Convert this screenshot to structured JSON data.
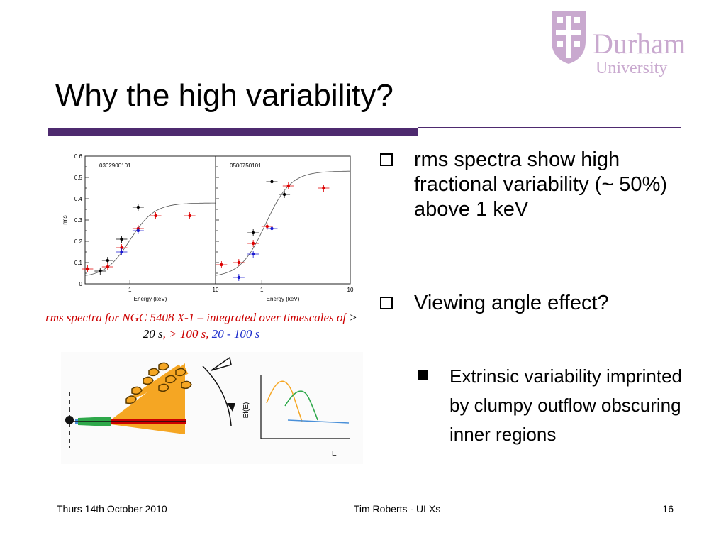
{
  "slide": {
    "title": "Why the high variability?",
    "logo": {
      "word1": "Durham",
      "word2": "University"
    },
    "caption": {
      "part1": "rms spectra for NGC 5408 X-1 – integrated over timescales of ",
      "part2": "> 20 s",
      "part3": ", > 100 s, ",
      "part4": "20 - 100 s"
    },
    "bullets": [
      {
        "text": "rms spectra show high fractional variability (~ 50%) above 1 keV"
      },
      {
        "text": "Viewing angle effect?"
      }
    ],
    "sub_bullets": [
      {
        "text": "Extrinsic variability imprinted by clumpy outflow obscuring inner regions"
      }
    ],
    "footer": {
      "date": "Thurs 14th October 2010",
      "center": "Tim Roberts - ULXs",
      "page": "16"
    }
  },
  "chart_data": [
    {
      "type": "scatter",
      "title": "0302900101",
      "xlabel": "Energy (keV)",
      "ylabel": "rms",
      "x_scale": "log",
      "xlim": [
        0.3,
        10
      ],
      "ylim": [
        0,
        0.6
      ],
      "xticks": [
        "1",
        "10"
      ],
      "yticks": [
        "0",
        "0.1",
        "0.2",
        "0.3",
        "0.4",
        "0.5",
        "0.6"
      ],
      "series": [
        {
          "color": "#000000",
          "points": [
            [
              0.45,
              0.06
            ],
            [
              0.55,
              0.11
            ],
            [
              0.8,
              0.21
            ],
            [
              1.25,
              0.36
            ]
          ]
        },
        {
          "color": "#dd0000",
          "points": [
            [
              0.32,
              0.07
            ],
            [
              0.55,
              0.08
            ],
            [
              0.8,
              0.17
            ],
            [
              1.25,
              0.26
            ],
            [
              2.0,
              0.32
            ],
            [
              5.0,
              0.32
            ]
          ]
        },
        {
          "color": "#1a1ad0",
          "points": [
            [
              0.8,
              0.15
            ],
            [
              1.25,
              0.25
            ]
          ]
        }
      ]
    },
    {
      "type": "scatter",
      "title": "0500750101",
      "xlabel": "Energy (keV)",
      "ylabel": "",
      "x_scale": "log",
      "xlim": [
        0.3,
        10
      ],
      "ylim": [
        0,
        0.6
      ],
      "xticks": [
        "1",
        "10"
      ],
      "series": [
        {
          "color": "#000000",
          "points": [
            [
              0.8,
              0.24
            ],
            [
              1.3,
              0.48
            ],
            [
              1.8,
              0.42
            ]
          ]
        },
        {
          "color": "#dd0000",
          "points": [
            [
              0.35,
              0.09
            ],
            [
              0.55,
              0.1
            ],
            [
              0.8,
              0.19
            ],
            [
              1.15,
              0.27
            ],
            [
              2.0,
              0.46
            ],
            [
              5.0,
              0.45
            ]
          ]
        },
        {
          "color": "#1a1ad0",
          "points": [
            [
              0.55,
              0.03
            ],
            [
              0.8,
              0.14
            ],
            [
              1.3,
              0.26
            ]
          ]
        }
      ]
    }
  ],
  "diagram": {
    "ylabel": "Ef(E)",
    "xlabel": "E",
    "colors": {
      "outflow": "#f5a623",
      "inner": "#2ea84a",
      "jet": "#cc0000",
      "powerlaw": "#4a90d9"
    }
  }
}
